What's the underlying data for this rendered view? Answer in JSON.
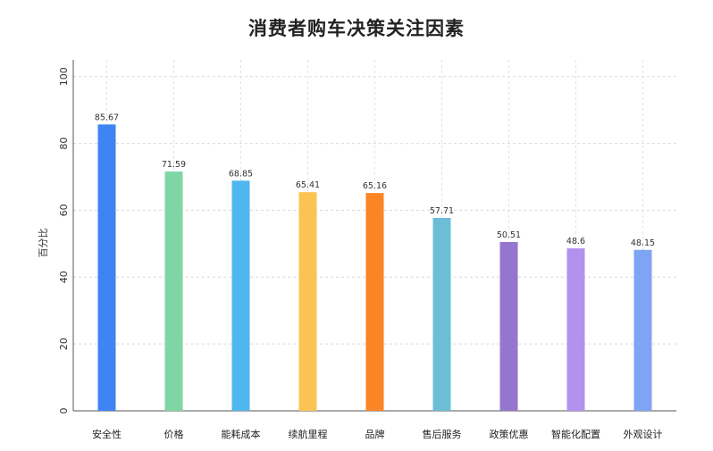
{
  "chart_data": {
    "type": "bar",
    "title": "消费者购车决策关注因素",
    "xlabel": "",
    "ylabel": "百分比",
    "ylim": [
      0,
      105
    ],
    "yticks": [
      0,
      20,
      40,
      60,
      80,
      100
    ],
    "grid": true,
    "categories": [
      "安全性",
      "价格",
      "能耗成本",
      "续航里程",
      "品牌",
      "售后服务",
      "政策优惠",
      "智能化配置",
      "外观设计"
    ],
    "values": [
      85.67,
      71.59,
      68.85,
      65.41,
      65.16,
      57.71,
      50.51,
      48.6,
      48.15
    ],
    "value_labels": [
      "85.67",
      "71.59",
      "68.85",
      "65.41",
      "65.16",
      "57.71",
      "50.51",
      "48.6",
      "48.15"
    ],
    "colors": [
      "#3f84f2",
      "#7fd6a4",
      "#4fb6ef",
      "#fbc452",
      "#fb8524",
      "#6cbdd6",
      "#9576cf",
      "#b292ef",
      "#7fa4f4"
    ]
  }
}
